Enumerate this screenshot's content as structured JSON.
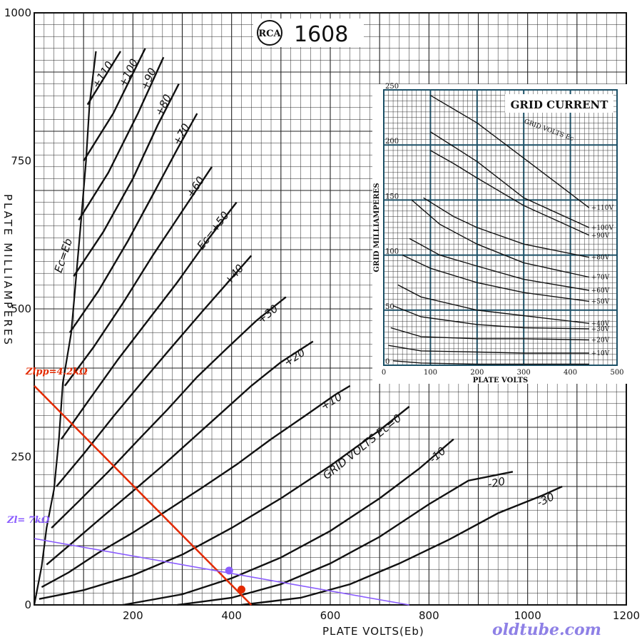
{
  "chart_data": [
    {
      "type": "line",
      "title": "1608",
      "logo": "RCA",
      "xlabel": "PLATE VOLTS(Eb)",
      "ylabel": "PLATE MILLIAMPERES",
      "xlim": [
        0,
        1200
      ],
      "ylim": [
        0,
        1000
      ],
      "x_ticks": [
        "200",
        "400",
        "600",
        "800",
        "1000",
        "1200"
      ],
      "y_ticks": [
        "0",
        "250",
        "500",
        "750",
        "1000"
      ],
      "grid": true,
      "series_label_prefix": "GRID VOLTS",
      "ec_eb_label": "Ec=Eb",
      "ec50_label": "Ec=+50",
      "series": [
        {
          "name": "+110",
          "points": [
            [
              108,
              845
            ],
            [
              175,
              935
            ]
          ]
        },
        {
          "name": "+100",
          "points": [
            [
              100,
              750
            ],
            [
              160,
              830
            ],
            [
              225,
              940
            ]
          ]
        },
        {
          "name": "+90",
          "points": [
            [
              90,
              650
            ],
            [
              150,
              730
            ],
            [
              210,
              830
            ],
            [
              262,
              925
            ]
          ]
        },
        {
          "name": "+80",
          "points": [
            [
              80,
              555
            ],
            [
              140,
              630
            ],
            [
              200,
              720
            ],
            [
              250,
              810
            ],
            [
              293,
              880
            ]
          ]
        },
        {
          "name": "+70",
          "points": [
            [
              72,
              460
            ],
            [
              130,
              530
            ],
            [
              190,
              615
            ],
            [
              245,
              700
            ],
            [
              290,
              770
            ],
            [
              330,
              830
            ]
          ]
        },
        {
          "name": "+60",
          "points": [
            [
              62,
              370
            ],
            [
              120,
              435
            ],
            [
              180,
              510
            ],
            [
              240,
              590
            ],
            [
              300,
              665
            ],
            [
              360,
              740
            ]
          ]
        },
        {
          "name": "+50",
          "points": [
            [
              55,
              280
            ],
            [
              110,
              345
            ],
            [
              170,
              415
            ],
            [
              230,
              480
            ],
            [
              290,
              545
            ],
            [
              350,
              615
            ],
            [
              410,
              680
            ]
          ]
        },
        {
          "name": "+40",
          "points": [
            [
              45,
              200
            ],
            [
              100,
              255
            ],
            [
              160,
              318
            ],
            [
              220,
              378
            ],
            [
              280,
              437
            ],
            [
              340,
              495
            ],
            [
              400,
              552
            ],
            [
              440,
              590
            ]
          ]
        },
        {
          "name": "+30",
          "points": [
            [
              35,
              130
            ],
            [
              90,
              175
            ],
            [
              150,
              225
            ],
            [
              210,
              278
            ],
            [
              270,
              330
            ],
            [
              330,
              385
            ],
            [
              390,
              433
            ],
            [
              450,
              480
            ],
            [
              510,
              520
            ]
          ]
        },
        {
          "name": "+20",
          "points": [
            [
              25,
              68
            ],
            [
              80,
              107
            ],
            [
              140,
              150
            ],
            [
              200,
              192
            ],
            [
              260,
              235
            ],
            [
              320,
              280
            ],
            [
              380,
              325
            ],
            [
              440,
              370
            ],
            [
              500,
              410
            ],
            [
              565,
              445
            ]
          ]
        },
        {
          "name": "+10",
          "points": [
            [
              15,
              30
            ],
            [
              70,
              55
            ],
            [
              130,
              88
            ],
            [
              200,
              122
            ],
            [
              270,
              160
            ],
            [
              340,
              198
            ],
            [
              410,
              237
            ],
            [
              480,
              280
            ],
            [
              550,
              320
            ],
            [
              610,
              355
            ],
            [
              640,
              370
            ]
          ]
        },
        {
          "name": "0",
          "points": [
            [
              10,
              10
            ],
            [
              100,
              25
            ],
            [
              200,
              50
            ],
            [
              300,
              85
            ],
            [
              400,
              130
            ],
            [
              500,
              180
            ],
            [
              600,
              235
            ],
            [
              700,
              295
            ],
            [
              760,
              335
            ]
          ]
        },
        {
          "name": "-10",
          "points": [
            [
              180,
              0
            ],
            [
              300,
              18
            ],
            [
              400,
              45
            ],
            [
              500,
              80
            ],
            [
              600,
              125
            ],
            [
              700,
              180
            ],
            [
              780,
              230
            ],
            [
              850,
              280
            ]
          ]
        },
        {
          "name": "-20",
          "points": [
            [
              290,
              0
            ],
            [
              400,
              12
            ],
            [
              500,
              35
            ],
            [
              600,
              70
            ],
            [
              700,
              115
            ],
            [
              800,
              170
            ],
            [
              880,
              210
            ],
            [
              970,
              225
            ]
          ]
        },
        {
          "name": "-30",
          "points": [
            [
              420,
              0
            ],
            [
              540,
              12
            ],
            [
              640,
              35
            ],
            [
              740,
              70
            ],
            [
              840,
              110
            ],
            [
              940,
              155
            ],
            [
              1030,
              185
            ],
            [
              1070,
              200
            ]
          ]
        }
      ],
      "ec_eb_points": [
        [
          0,
          0
        ],
        [
          15,
          65
        ],
        [
          25,
          130
        ],
        [
          40,
          195
        ],
        [
          50,
          280
        ],
        [
          58,
          375
        ],
        [
          75,
          460
        ],
        [
          85,
          555
        ],
        [
          95,
          650
        ],
        [
          105,
          750
        ],
        [
          112,
          845
        ],
        [
          125,
          935
        ]
      ],
      "load_lines": [
        {
          "label": "Zlpp=4.2kΩ",
          "color": "#e32a00",
          "points": [
            [
              0,
              370
            ],
            [
              440,
              0
            ]
          ]
        },
        {
          "label": "Zl= 7kΩ",
          "color": "#8a5cff",
          "points": [
            [
              0,
              112
            ],
            [
              760,
              0
            ]
          ]
        }
      ],
      "markers": [
        {
          "x": 395,
          "y": 58,
          "color": "#8a5cff"
        },
        {
          "x": 420,
          "y": 26,
          "color": "#e32a00"
        }
      ],
      "watermark": "oldtube.com"
    },
    {
      "type": "line",
      "title": "GRID CURRENT",
      "xlabel": "PLATE VOLTS",
      "ylabel": "GRID MILLIAMPERES",
      "xlim": [
        0,
        500
      ],
      "ylim": [
        0,
        250
      ],
      "x_ticks": [
        "0",
        "100",
        "200",
        "300",
        "400",
        "500"
      ],
      "y_ticks": [
        "0",
        "50",
        "100",
        "150",
        "200",
        "250"
      ],
      "grid": true,
      "legend_title": "GRID VOLTS Ec",
      "series": [
        {
          "name": "+110V",
          "points": [
            [
              100,
              245
            ],
            [
              200,
              220
            ],
            [
              300,
              188
            ],
            [
              350,
              172
            ],
            [
              440,
              143
            ]
          ]
        },
        {
          "name": "+100V",
          "points": [
            [
              100,
              212
            ],
            [
              200,
              185
            ],
            [
              300,
              152
            ],
            [
              440,
              125
            ]
          ]
        },
        {
          "name": "+90V",
          "points": [
            [
              100,
              195
            ],
            [
              150,
              183
            ],
            [
              200,
              170
            ],
            [
              300,
              145
            ],
            [
              440,
              118
            ]
          ]
        },
        {
          "name": "+80V",
          "points": [
            [
              85,
              152
            ],
            [
              150,
              135
            ],
            [
              200,
              125
            ],
            [
              300,
              110
            ],
            [
              440,
              98
            ]
          ]
        },
        {
          "name": "+70V",
          "points": [
            [
              60,
              150
            ],
            [
              120,
              128
            ],
            [
              200,
              110
            ],
            [
              300,
              93
            ],
            [
              440,
              80
            ]
          ]
        },
        {
          "name": "+60V",
          "points": [
            [
              55,
              115
            ],
            [
              120,
              100
            ],
            [
              200,
              90
            ],
            [
              300,
              78
            ],
            [
              440,
              68
            ]
          ]
        },
        {
          "name": "+50V",
          "points": [
            [
              40,
              100
            ],
            [
              100,
              88
            ],
            [
              200,
              75
            ],
            [
              300,
              66
            ],
            [
              440,
              58
            ]
          ]
        },
        {
          "name": "+40V",
          "points": [
            [
              30,
              73
            ],
            [
              80,
              62
            ],
            [
              200,
              50
            ],
            [
              300,
              45
            ],
            [
              440,
              38
            ]
          ]
        },
        {
          "name": "+30V",
          "points": [
            [
              20,
              54
            ],
            [
              80,
              44
            ],
            [
              200,
              37
            ],
            [
              300,
              34
            ],
            [
              440,
              33
            ]
          ]
        },
        {
          "name": "+20V",
          "points": [
            [
              15,
              34
            ],
            [
              80,
              26
            ],
            [
              200,
              24
            ],
            [
              300,
              24
            ],
            [
              440,
              23
            ]
          ]
        },
        {
          "name": "+10V",
          "points": [
            [
              10,
              18
            ],
            [
              80,
              13
            ],
            [
              200,
              12
            ],
            [
              300,
              11
            ],
            [
              440,
              11
            ]
          ]
        },
        {
          "name": "",
          "points": [
            [
              20,
              4
            ],
            [
              80,
              2
            ],
            [
              200,
              1
            ],
            [
              440,
              1
            ]
          ]
        }
      ]
    }
  ]
}
